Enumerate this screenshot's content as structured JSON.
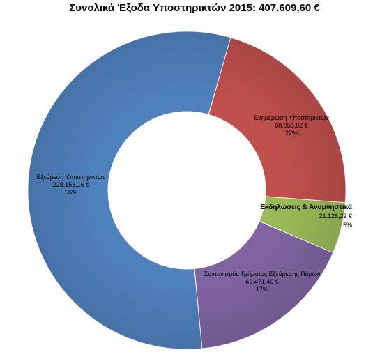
{
  "chart_data": {
    "type": "pie",
    "donut": true,
    "title": "Συνολικά Έξοδα Υποστηρικτών 2015:  407.609,60 €",
    "currency": "€",
    "slices": [
      {
        "label": "Ενημέρωση Υποστηρικτών",
        "value_text": "88.858,82 €",
        "value": 88858.82,
        "percent_text": "22%",
        "color": "#C0504D"
      },
      {
        "label": "Εκδηλώσεις & Αναμνηστικά",
        "value_text": "21.126,22 €",
        "value": 21126.22,
        "percent_text": "5%",
        "color": "#9BBB59"
      },
      {
        "label": "Συντονισμός Τμήματος Εξεύρεσης Πόρων",
        "value_text": "69.471,40 €",
        "value": 69471.4,
        "percent_text": "17%",
        "color": "#8064A2"
      },
      {
        "label": "Εξεύρεση Υποστηρικτών",
        "value_text": "228.153,16 €",
        "value": 228153.16,
        "percent_text": "56%",
        "color": "#4F81BD"
      }
    ]
  }
}
